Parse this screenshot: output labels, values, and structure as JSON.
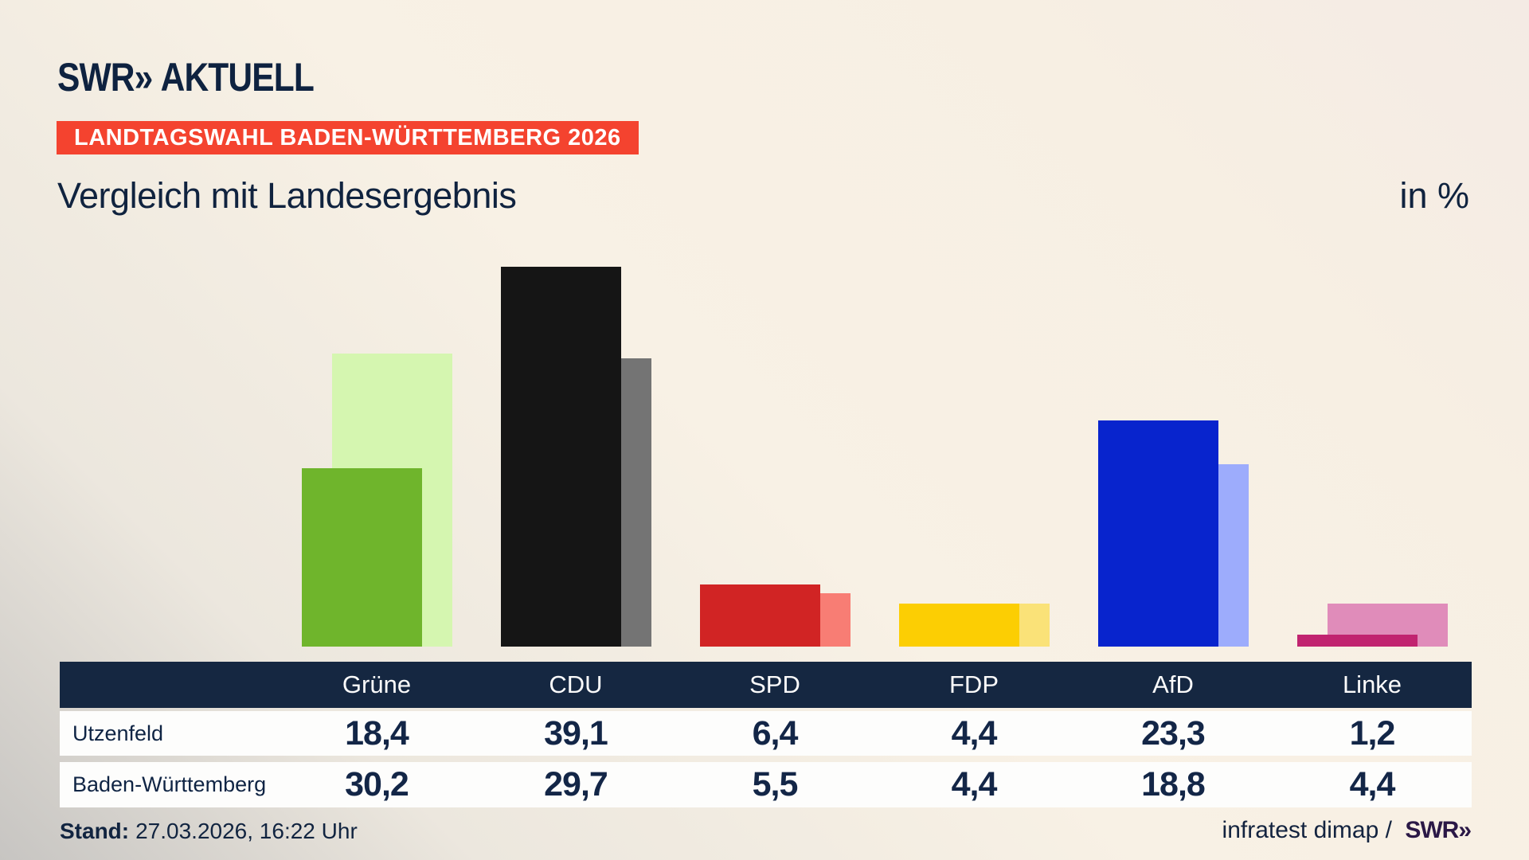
{
  "brand": {
    "swr": "SWR",
    "chevrons": "»",
    "suffix": "AKTUELL"
  },
  "header": {
    "badge": "LANDTAGSWAHL BADEN-WÜRTTEMBERG 2026",
    "badge_color": "#f4432f",
    "title": "Vergleich mit Landesergebnis",
    "unit_label": "in %"
  },
  "chart_data": {
    "type": "bar",
    "categories": [
      "Grüne",
      "CDU",
      "SPD",
      "FDP",
      "AfD",
      "Linke"
    ],
    "series": [
      {
        "name": "Utzenfeld",
        "role": "front",
        "values": [
          18.4,
          39.1,
          6.4,
          4.4,
          23.3,
          1.2
        ]
      },
      {
        "name": "Baden-Württemberg",
        "role": "back",
        "values": [
          30.2,
          29.7,
          5.5,
          4.4,
          18.8,
          4.4
        ]
      }
    ],
    "colors": {
      "front": [
        "#6fb52c",
        "#151515",
        "#d12424",
        "#fcce03",
        "#0824cd",
        "#c12470"
      ],
      "back": [
        "#d5f6b0",
        "#747474",
        "#f87d74",
        "#fae278",
        "#9dacfc",
        "#e08cba"
      ]
    },
    "title": "Vergleich mit Landesergebnis",
    "xlabel": "",
    "ylabel": "in %",
    "ylim": [
      0,
      45
    ],
    "grid": false,
    "legend_position": "table-below"
  },
  "table": {
    "columns": [
      "Grüne",
      "CDU",
      "SPD",
      "FDP",
      "AfD",
      "Linke"
    ],
    "rows": [
      {
        "label": "Utzenfeld",
        "values": [
          "18,4",
          "39,1",
          "6,4",
          "4,4",
          "23,3",
          "1,2"
        ]
      },
      {
        "label": "Baden-Württemberg",
        "values": [
          "30,2",
          "29,7",
          "5,5",
          "4,4",
          "18,8",
          "4,4"
        ]
      }
    ]
  },
  "footer": {
    "stand_label": "Stand:",
    "stand_value": "27.03.2026, 16:22 Uhr",
    "source_text": "infratest dimap /",
    "source_logo_swr": "SWR",
    "source_logo_chevrons": "»"
  }
}
